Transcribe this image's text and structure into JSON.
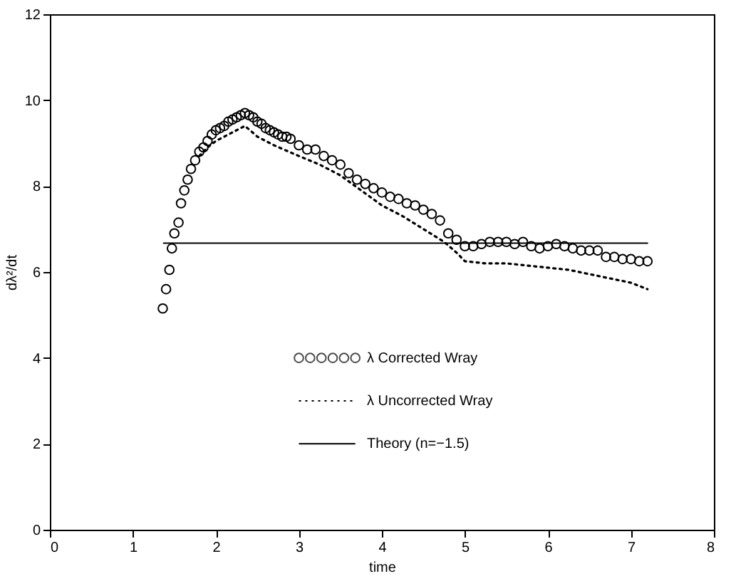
{
  "chart_data": {
    "type": "scatter",
    "xlabel": "time",
    "ylabel": "dλ²/dt",
    "xlim": [
      0,
      8
    ],
    "ylim": [
      0,
      12
    ],
    "xticks": [
      0,
      1,
      2,
      3,
      4,
      5,
      6,
      7,
      8
    ],
    "yticks": [
      0,
      2,
      4,
      6,
      8,
      10,
      12
    ],
    "grid": false,
    "legend": "bottom",
    "series": [
      {
        "name": "λ Corrected Wray",
        "type": "scatter",
        "marker": "circle",
        "color": "#000000",
        "x": [
          1.36,
          1.4,
          1.44,
          1.47,
          1.5,
          1.55,
          1.58,
          1.62,
          1.66,
          1.7,
          1.75,
          1.8,
          1.85,
          1.9,
          1.95,
          2.0,
          2.05,
          2.1,
          2.15,
          2.2,
          2.25,
          2.3,
          2.35,
          2.4,
          2.45,
          2.5,
          2.55,
          2.6,
          2.65,
          2.7,
          2.75,
          2.8,
          2.85,
          2.9,
          3.0,
          3.1,
          3.2,
          3.3,
          3.4,
          3.5,
          3.6,
          3.7,
          3.8,
          3.9,
          4.0,
          4.1,
          4.2,
          4.3,
          4.4,
          4.5,
          4.6,
          4.7,
          4.8,
          4.9,
          5.0,
          5.1,
          5.2,
          5.3,
          5.4,
          5.5,
          5.6,
          5.7,
          5.8,
          5.9,
          6.0,
          6.1,
          6.2,
          6.3,
          6.4,
          6.5,
          6.6,
          6.7,
          6.8,
          6.9,
          7.0,
          7.1,
          7.2
        ],
        "values": [
          5.15,
          5.6,
          6.05,
          6.55,
          6.9,
          7.15,
          7.6,
          7.9,
          8.15,
          8.4,
          8.6,
          8.8,
          8.9,
          9.05,
          9.2,
          9.3,
          9.35,
          9.4,
          9.5,
          9.55,
          9.6,
          9.65,
          9.7,
          9.65,
          9.6,
          9.5,
          9.45,
          9.35,
          9.3,
          9.25,
          9.2,
          9.15,
          9.15,
          9.1,
          8.95,
          8.85,
          8.85,
          8.7,
          8.6,
          8.5,
          8.3,
          8.15,
          8.05,
          7.95,
          7.85,
          7.75,
          7.7,
          7.6,
          7.55,
          7.45,
          7.35,
          7.2,
          6.9,
          6.75,
          6.6,
          6.6,
          6.65,
          6.7,
          6.7,
          6.7,
          6.65,
          6.7,
          6.6,
          6.55,
          6.6,
          6.65,
          6.6,
          6.55,
          6.5,
          6.5,
          6.5,
          6.35,
          6.35,
          6.3,
          6.3,
          6.25,
          6.25
        ]
      },
      {
        "name": "λ Uncorrected Wray",
        "type": "line",
        "line_style": "dotted",
        "color": "#000000",
        "x": [
          1.8,
          1.9,
          2.0,
          2.1,
          2.2,
          2.3,
          2.35,
          2.5,
          2.7,
          3.0,
          3.25,
          3.5,
          3.75,
          4.0,
          4.25,
          4.5,
          4.75,
          4.9,
          5.0,
          5.25,
          5.5,
          5.75,
          6.0,
          6.25,
          6.5,
          6.75,
          7.0,
          7.2
        ],
        "values": [
          8.7,
          8.9,
          9.05,
          9.15,
          9.25,
          9.35,
          9.4,
          9.15,
          8.95,
          8.7,
          8.5,
          8.25,
          7.9,
          7.55,
          7.3,
          7.0,
          6.7,
          6.45,
          6.25,
          6.2,
          6.2,
          6.15,
          6.1,
          6.05,
          5.95,
          5.85,
          5.75,
          5.6
        ]
      },
      {
        "name": "Theory (n=−1.5)",
        "type": "line",
        "line_style": "solid",
        "color": "#000000",
        "x": [
          1.37,
          7.2
        ],
        "values": [
          6.67,
          6.67
        ]
      }
    ]
  }
}
